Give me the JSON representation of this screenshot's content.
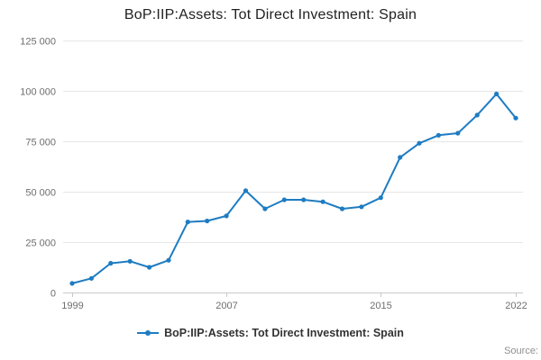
{
  "title": "BoP:IIP:Assets: Tot Direct Investment: Spain",
  "legend": {
    "label": "BoP:IIP:Assets: Tot Direct Investment: Spain"
  },
  "source_label": "Source:",
  "colors": {
    "line": "#1e7cc2",
    "grid": "#e6e6e6",
    "axis": "#c8c8c8",
    "tick_text": "#6e6e6e",
    "title_text": "#222222"
  },
  "chart_data": {
    "type": "line",
    "title": "BoP:IIP:Assets: Tot Direct Investment: Spain",
    "x": [
      1999,
      2000,
      2001,
      2002,
      2003,
      2004,
      2005,
      2006,
      2007,
      2008,
      2009,
      2010,
      2011,
      2012,
      2013,
      2014,
      2015,
      2016,
      2017,
      2018,
      2019,
      2020,
      2021,
      2022
    ],
    "series": [
      {
        "name": "BoP:IIP:Assets: Tot Direct Investment: Spain",
        "values": [
          4500,
          7000,
          14500,
          15500,
          12500,
          16000,
          35000,
          35500,
          38000,
          50500,
          41500,
          46000,
          46000,
          45000,
          41500,
          42500,
          47000,
          67000,
          74000,
          78000,
          79000,
          88000,
          98500,
          86500
        ]
      }
    ],
    "xlabel": "",
    "ylabel": "",
    "ylim": [
      0,
      125000
    ],
    "yticks": [
      0,
      25000,
      50000,
      75000,
      100000,
      125000
    ],
    "ytick_labels": [
      "0",
      "25 000",
      "50 000",
      "75 000",
      "100 000",
      "125 000"
    ],
    "xtick_years": [
      1999,
      2007,
      2015,
      2022
    ],
    "grid": true,
    "legend_position": "bottom"
  }
}
